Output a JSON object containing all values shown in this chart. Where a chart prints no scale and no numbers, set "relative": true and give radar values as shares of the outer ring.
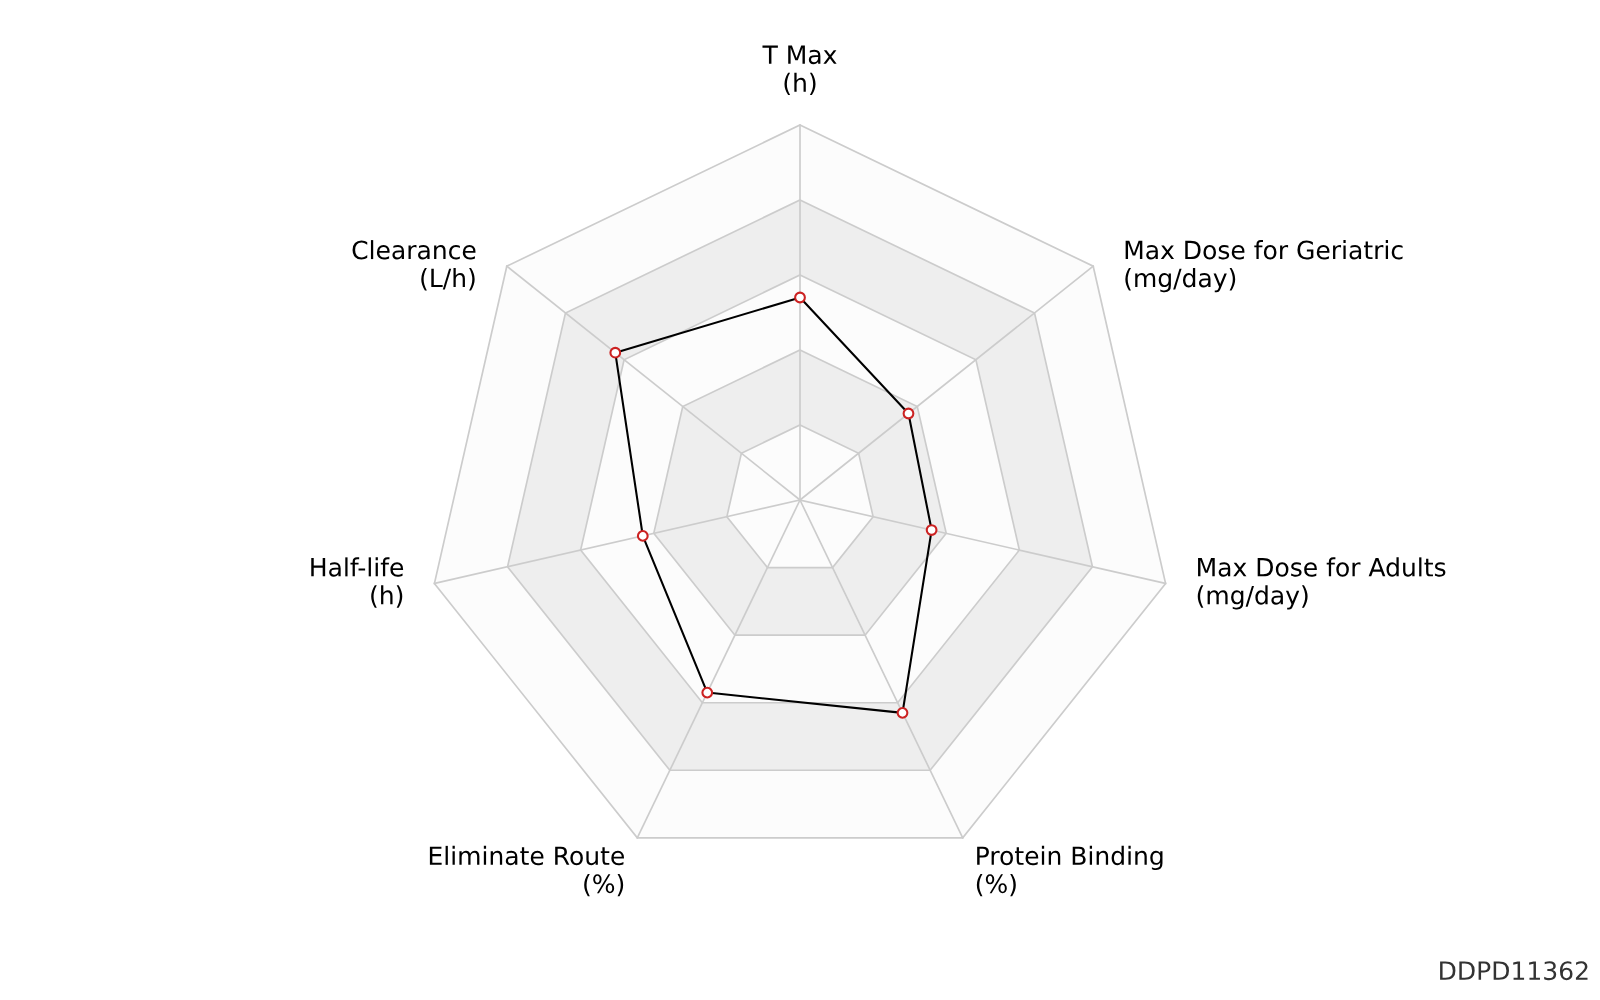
{
  "chart_data": {
    "type": "radar",
    "relative": true,
    "grid": true,
    "marker": "circle",
    "categories": [
      "T Max\n(h)",
      "Max Dose for Geriatric\n(mg/day)",
      "Max Dose for Adults\n(mg/day)",
      "Protein Binding\n(%)",
      "Eliminate Route\n(%)",
      "Half-life\n(h)",
      "Clearance\n(L/h)"
    ],
    "series": [
      {
        "color": "#000000",
        "values": [
          0.54,
          0.37,
          0.36,
          0.63,
          0.57,
          0.43,
          0.63
        ]
      }
    ],
    "annotations": [
      "DDPD11362"
    ]
  }
}
